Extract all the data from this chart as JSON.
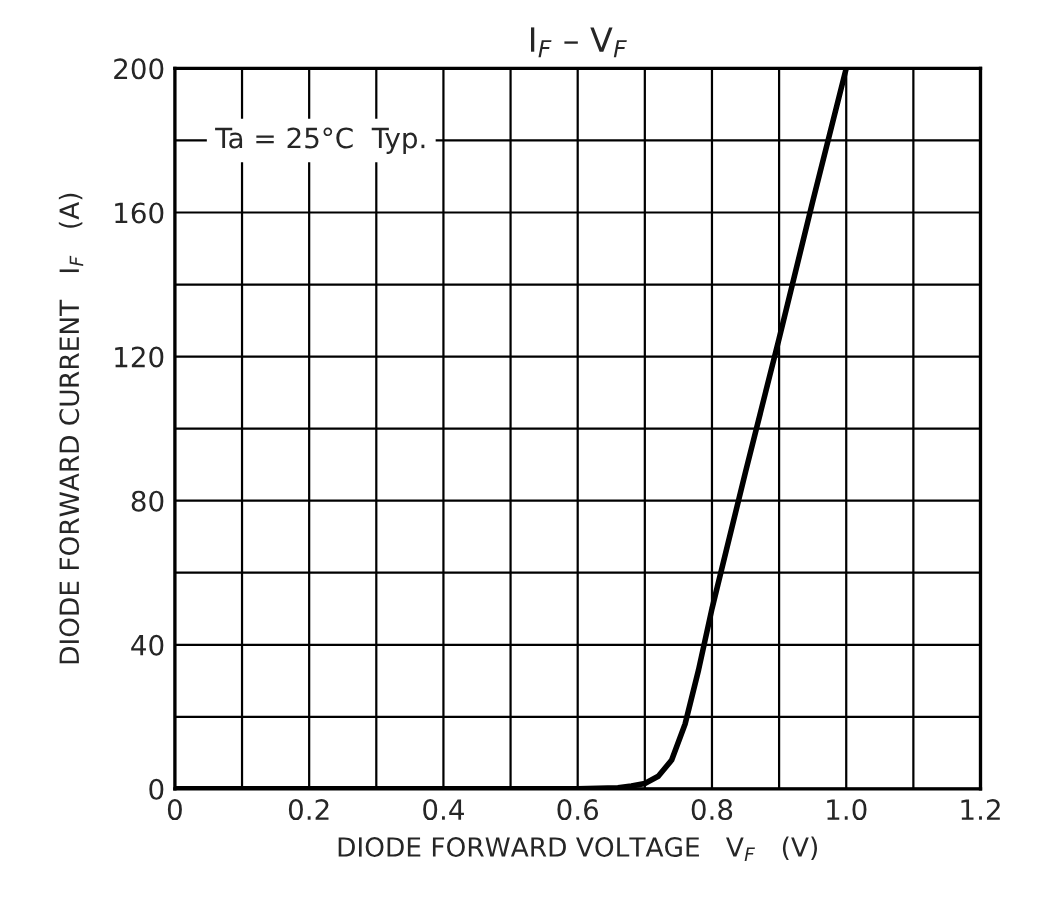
{
  "chart_data": {
    "type": "line",
    "title": "I$_{F}$ – V$_{F}$",
    "xlabel": "DIODE FORWARD VOLTAGE   V$_{F}$   (V)",
    "ylabel": "DIODE FORWARD CURRENT   I$_{F}$   (A)",
    "annotations": [
      "Ta = 25°C  Typ."
    ],
    "x": [
      0,
      0.6,
      0.66,
      0.68,
      0.7,
      0.72,
      0.74,
      0.76,
      0.78,
      0.8,
      0.85,
      0.9,
      0.95,
      1.0
    ],
    "series": [
      {
        "color": "#000000",
        "values": [
          0,
          0,
          0.3,
          0.8,
          1.5,
          3.5,
          8,
          18,
          33,
          50,
          88,
          125,
          163,
          200
        ]
      }
    ],
    "xlim": [
      0,
      1.2
    ],
    "ylim": [
      0,
      200
    ],
    "xticks": [
      0,
      {
        "value": 0.1,
        "label": null
      },
      0.2,
      {
        "value": 0.3,
        "label": null
      },
      0.4,
      {
        "value": 0.5,
        "label": null
      },
      0.6,
      {
        "value": 0.7,
        "label": null
      },
      0.8,
      {
        "value": 0.9,
        "label": null
      },
      {
        "value": 1,
        "label": "1.0"
      },
      {
        "value": 1.1,
        "label": null
      },
      1.2
    ],
    "yticks": [
      0,
      {
        "value": 20,
        "label": null
      },
      40,
      {
        "value": 60,
        "label": null
      },
      80,
      {
        "value": 100,
        "label": null
      },
      120,
      {
        "value": 140,
        "label": null
      },
      160,
      {
        "value": 180,
        "label": null
      },
      200
    ],
    "grid": true,
    "line_style": "solid",
    "marker": "none"
  }
}
